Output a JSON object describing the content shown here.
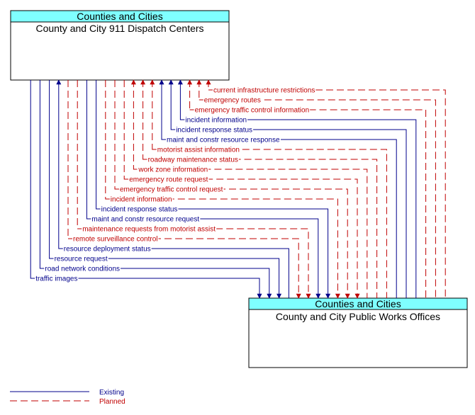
{
  "colors": {
    "existing": "#00008b",
    "planned": "#c00000",
    "header_fill": "#7fffff"
  },
  "top_box": {
    "category": "Counties and Cities",
    "name": "County and City 911 Dispatch Centers"
  },
  "bottom_box": {
    "category": "Counties and Cities",
    "name": "County and City Public Works Offices"
  },
  "flows": [
    {
      "label": "current infrastructure restrictions",
      "status": "planned",
      "toward": "top"
    },
    {
      "label": "emergency routes",
      "status": "planned",
      "toward": "top"
    },
    {
      "label": "emergency traffic control information",
      "status": "planned",
      "toward": "top"
    },
    {
      "label": "incident information",
      "status": "existing",
      "toward": "top"
    },
    {
      "label": "incident response status",
      "status": "existing",
      "toward": "top"
    },
    {
      "label": "maint and constr resource response",
      "status": "existing",
      "toward": "top"
    },
    {
      "label": "motorist assist information",
      "status": "planned",
      "toward": "top"
    },
    {
      "label": "roadway maintenance status",
      "status": "planned",
      "toward": "top"
    },
    {
      "label": "work zone information",
      "status": "planned",
      "toward": "top"
    },
    {
      "label": "emergency route request",
      "status": "planned",
      "toward": "bottom"
    },
    {
      "label": "emergency traffic control request",
      "status": "planned",
      "toward": "bottom"
    },
    {
      "label": "incident information",
      "status": "planned",
      "toward": "bottom"
    },
    {
      "label": "incident response status",
      "status": "existing",
      "toward": "bottom"
    },
    {
      "label": "maint and constr resource request",
      "status": "existing",
      "toward": "bottom"
    },
    {
      "label": "maintenance requests from motorist assist",
      "status": "planned",
      "toward": "bottom"
    },
    {
      "label": "remote surveillance control",
      "status": "planned",
      "toward": "bottom"
    },
    {
      "label": "resource deployment status",
      "status": "existing",
      "toward": "top"
    },
    {
      "label": "resource request",
      "status": "existing",
      "toward": "bottom"
    },
    {
      "label": "road network conditions",
      "status": "existing",
      "toward": "bottom"
    },
    {
      "label": "traffic images",
      "status": "existing",
      "toward": "bottom"
    }
  ],
  "legend": {
    "existing": "Existing",
    "planned": "Planned"
  }
}
